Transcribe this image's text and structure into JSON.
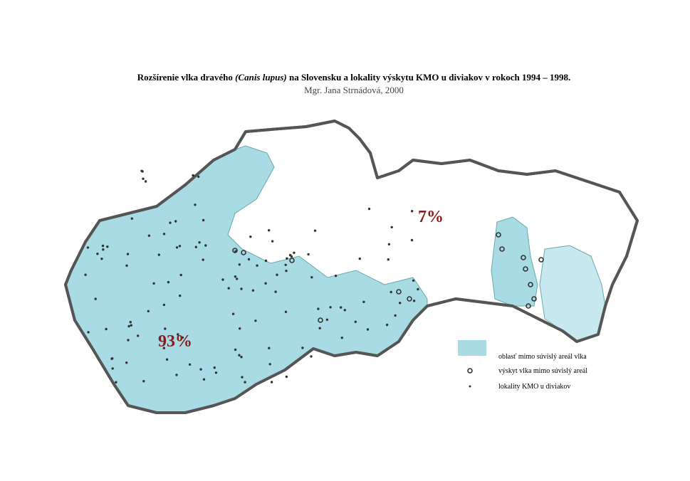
{
  "header": {
    "title": {
      "before": "Rozšírenie vlka dravého ",
      "italic": "(Canis lupus)",
      "after": " na Slovensku a lokality výskytu KMO u diviakov v rokoch 1994 – 1998."
    },
    "subtitle": "Mgr. Jana Strnádová, 2000"
  },
  "map": {
    "labels": {
      "east": "7%",
      "west": "93%"
    }
  },
  "legend": {
    "items": [
      "oblasť mimo súvislý areál vlka",
      "výskyt vlka mimo súvislý areál",
      "lokality KMO u diviakov"
    ]
  }
}
